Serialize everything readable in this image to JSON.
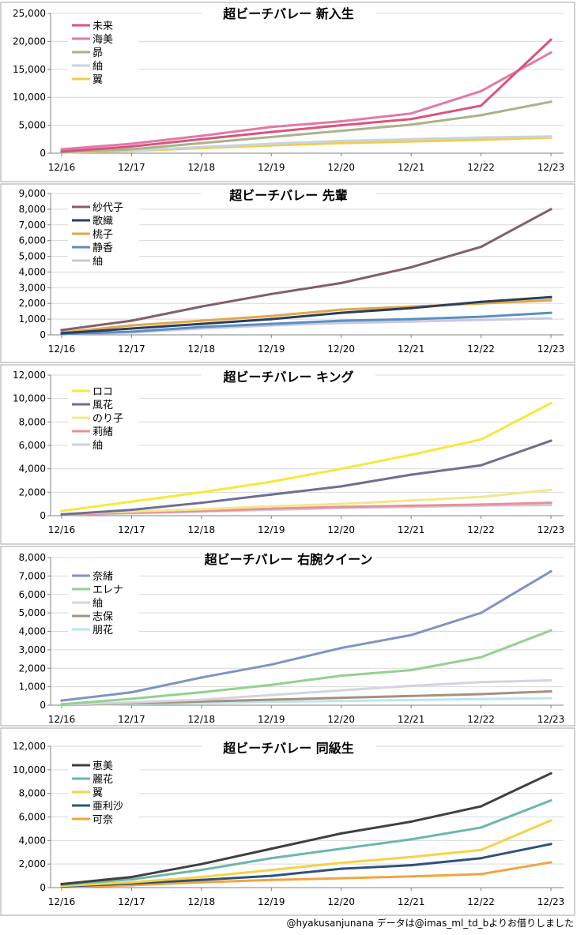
{
  "credit": "@hyakusanjunana データは@imas_ml_td_bよりお借りしました",
  "colors": {
    "frame": "#a6a6a6",
    "axis": "#808080",
    "grid": "#d9d9d9"
  },
  "chart_data": [
    {
      "type": "line",
      "title": "超ビーチバレー 新入生",
      "categories": [
        "12/16",
        "12/17",
        "12/18",
        "12/19",
        "12/20",
        "12/21",
        "12/22",
        "12/23"
      ],
      "x": [
        16,
        17,
        18,
        19,
        20,
        21,
        22,
        23
      ],
      "ylim": [
        0,
        25000
      ],
      "yticks": [
        "0",
        "5,000",
        "10,000",
        "15,000",
        "20,000",
        "25,000"
      ],
      "grid": true,
      "legend": "top-left",
      "series": [
        {
          "name": "未来",
          "color": "#d9547a",
          "values": [
            300,
            1200,
            2500,
            3800,
            5000,
            6100,
            8500,
            20300
          ]
        },
        {
          "name": "海美",
          "color": "#e07aa8",
          "values": [
            700,
            1700,
            3100,
            4700,
            5700,
            7100,
            11100,
            18000
          ]
        },
        {
          "name": "昴",
          "color": "#a9b38a",
          "values": [
            200,
            700,
            1800,
            2900,
            4000,
            5100,
            6800,
            9200
          ]
        },
        {
          "name": "紬",
          "color": "#c9d3e0",
          "values": [
            150,
            500,
            1100,
            1700,
            2200,
            2500,
            2800,
            3000
          ]
        },
        {
          "name": "翼",
          "color": "#f3cc4a",
          "values": [
            100,
            400,
            900,
            1400,
            1800,
            2100,
            2400,
            2800
          ]
        }
      ]
    },
    {
      "type": "line",
      "title": "超ビーチバレー 先輩",
      "categories": [
        "12/16",
        "12/17",
        "12/18",
        "12/19",
        "12/20",
        "12/21",
        "12/22",
        "12/23"
      ],
      "x": [
        16,
        17,
        18,
        19,
        20,
        21,
        22,
        23
      ],
      "ylim": [
        0,
        9000
      ],
      "yticks": [
        "0",
        "1,000",
        "2,000",
        "3,000",
        "4,000",
        "5,000",
        "6,000",
        "7,000",
        "8,000",
        "9,000"
      ],
      "grid": true,
      "legend": "top-left",
      "series": [
        {
          "name": "紗代子",
          "color": "#7f5f70",
          "values": [
            300,
            900,
            1800,
            2600,
            3300,
            4300,
            5600,
            8000
          ]
        },
        {
          "name": "歌織",
          "color": "#2c3e5a",
          "values": [
            100,
            400,
            700,
            1000,
            1400,
            1700,
            2100,
            2400
          ]
        },
        {
          "name": "桃子",
          "color": "#e0a84a",
          "values": [
            150,
            600,
            900,
            1200,
            1600,
            1800,
            2000,
            2200
          ]
        },
        {
          "name": "静香",
          "color": "#5b8fc2",
          "values": [
            50,
            200,
            500,
            700,
            900,
            1000,
            1150,
            1400
          ]
        },
        {
          "name": "紬",
          "color": "#c9c9e0",
          "values": [
            40,
            150,
            400,
            600,
            750,
            850,
            950,
            1050
          ]
        }
      ]
    },
    {
      "type": "line",
      "title": "超ビーチバレー キング",
      "categories": [
        "12/16",
        "12/17",
        "12/18",
        "12/19",
        "12/20",
        "12/21",
        "12/22",
        "12/23"
      ],
      "x": [
        16,
        17,
        18,
        19,
        20,
        21,
        22,
        23
      ],
      "ylim": [
        0,
        12000
      ],
      "yticks": [
        "0",
        "2,000",
        "4,000",
        "6,000",
        "8,000",
        "10,000",
        "12,000"
      ],
      "grid": true,
      "legend": "top-left",
      "series": [
        {
          "name": "ロコ",
          "color": "#f7e83a",
          "values": [
            400,
            1200,
            2000,
            2900,
            4000,
            5200,
            6500,
            9600
          ]
        },
        {
          "name": "風花",
          "color": "#6e6e96",
          "values": [
            100,
            500,
            1100,
            1800,
            2500,
            3500,
            4300,
            6400
          ]
        },
        {
          "name": "のり子",
          "color": "#f3e78a",
          "values": [
            150,
            350,
            550,
            800,
            1000,
            1300,
            1600,
            2200
          ]
        },
        {
          "name": "莉緒",
          "color": "#e8909a",
          "values": [
            100,
            250,
            400,
            600,
            750,
            850,
            950,
            1100
          ]
        },
        {
          "name": "紬",
          "color": "#cfcfdf",
          "values": [
            80,
            200,
            350,
            500,
            650,
            750,
            850,
            900
          ]
        }
      ]
    },
    {
      "type": "line",
      "title": "超ビーチバレー 右腕クイーン",
      "categories": [
        "12/16",
        "12/17",
        "12/18",
        "12/19",
        "12/20",
        "12/21",
        "12/22",
        "12/23"
      ],
      "x": [
        16,
        17,
        18,
        19,
        20,
        21,
        22,
        23
      ],
      "ylim": [
        0,
        8000
      ],
      "yticks": [
        "0",
        "1,000",
        "2,000",
        "3,000",
        "4,000",
        "5,000",
        "6,000",
        "7,000",
        "8,000"
      ],
      "grid": true,
      "legend": "top-left",
      "series": [
        {
          "name": "奈緒",
          "color": "#7f94c4",
          "values": [
            250,
            700,
            1500,
            2200,
            3100,
            3800,
            5000,
            7250
          ]
        },
        {
          "name": "エレナ",
          "color": "#93d18f",
          "values": [
            50,
            350,
            700,
            1100,
            1600,
            1900,
            2600,
            4050
          ]
        },
        {
          "name": "紬",
          "color": "#d4d4df",
          "values": [
            30,
            150,
            300,
            550,
            800,
            1050,
            1250,
            1350
          ]
        },
        {
          "name": "志保",
          "color": "#a3927a",
          "values": [
            20,
            100,
            200,
            300,
            400,
            500,
            600,
            750
          ]
        },
        {
          "name": "朋花",
          "color": "#bfe4ef",
          "values": [
            10,
            60,
            120,
            180,
            230,
            280,
            330,
            380
          ]
        }
      ]
    },
    {
      "type": "line",
      "title": "超ビーチバレー 同級生",
      "categories": [
        "12/16",
        "12/17",
        "12/18",
        "12/19",
        "12/20",
        "12/21",
        "12/22",
        "12/23"
      ],
      "x": [
        16,
        17,
        18,
        19,
        20,
        21,
        22,
        23
      ],
      "ylim": [
        0,
        12000
      ],
      "yticks": [
        "0",
        "2,000",
        "4,000",
        "6,000",
        "8,000",
        "10,000",
        "12,000"
      ],
      "grid": true,
      "legend": "top-left",
      "series": [
        {
          "name": "恵美",
          "color": "#404040",
          "values": [
            300,
            900,
            2000,
            3300,
            4600,
            5600,
            6900,
            9700
          ]
        },
        {
          "name": "麗花",
          "color": "#6cb6ae",
          "values": [
            250,
            700,
            1500,
            2500,
            3300,
            4100,
            5100,
            7400
          ]
        },
        {
          "name": "翼",
          "color": "#f6d24a",
          "values": [
            150,
            450,
            900,
            1500,
            2100,
            2600,
            3200,
            5700
          ]
        },
        {
          "name": "亜利沙",
          "color": "#2f527c",
          "values": [
            100,
            350,
            650,
            1000,
            1600,
            1900,
            2500,
            3700
          ]
        },
        {
          "name": "可奈",
          "color": "#f0a540",
          "values": [
            50,
            200,
            450,
            650,
            800,
            950,
            1150,
            2150
          ]
        }
      ]
    }
  ]
}
